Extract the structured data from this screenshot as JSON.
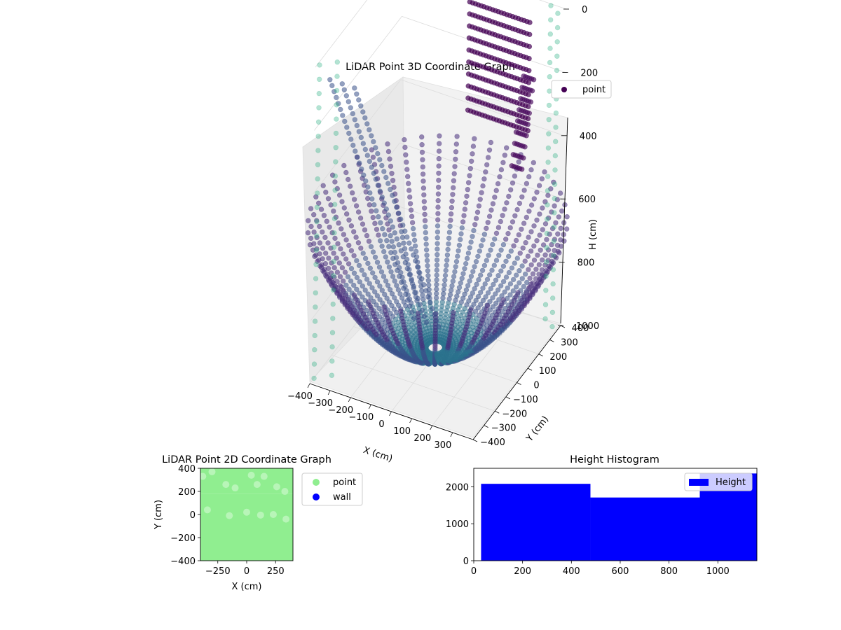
{
  "chart_data": [
    {
      "type": "scatter",
      "projection": "3d",
      "title": "LiDAR Point 3D Coordinate Graph",
      "xlabel": "X (cm)",
      "ylabel": "Y (cm)",
      "zlabel": "H (cm)",
      "xlim": [
        -400,
        400
      ],
      "ylim": [
        -400,
        400
      ],
      "zlim": [
        0,
        1000
      ],
      "z_inverted": true,
      "x_ticks": [
        "−400",
        "−300",
        "−200",
        "−100",
        "0",
        "100",
        "200",
        "300"
      ],
      "y_ticks": [
        "−400",
        "−300",
        "−200",
        "−100",
        "0",
        "100",
        "200",
        "300",
        "400"
      ],
      "z_ticks": [
        "0",
        "200",
        "400",
        "600",
        "800",
        "1000"
      ],
      "legend": [
        {
          "label": "point",
          "color": "#440154"
        }
      ],
      "legend_placement": "top-right",
      "grid": true,
      "colormap": "viridis",
      "series": [
        {
          "name": "point",
          "shape": "bowl",
          "description_values": {
            "z_floor": 950,
            "z_rim": 600,
            "radius_max": 400
          }
        }
      ]
    },
    {
      "type": "scatter",
      "title": "LiDAR Point 2D Coordinate Graph",
      "xlabel": "X (cm)",
      "ylabel": "Y (cm)",
      "xlim": [
        -400,
        400
      ],
      "ylim": [
        -400,
        400
      ],
      "x_ticks": [
        "−250",
        "0",
        "250"
      ],
      "y_ticks": [
        "−400",
        "−200",
        "0",
        "200",
        "400"
      ],
      "legend": [
        {
          "label": "point",
          "color": "#90ee90"
        },
        {
          "label": "wall",
          "color": "#0000ff"
        }
      ],
      "legend_placement": "outside-right"
    },
    {
      "type": "bar",
      "title": "Height Histogram",
      "xlim": [
        0,
        1160
      ],
      "ylim": [
        0,
        2500
      ],
      "x_ticks": [
        "0",
        "200",
        "400",
        "600",
        "800",
        "1000"
      ],
      "y_ticks": [
        "0",
        "1000",
        "2000"
      ],
      "bins": [
        {
          "start": 30,
          "end": 478,
          "count": 2080
        },
        {
          "start": 478,
          "end": 926,
          "count": 1710
        },
        {
          "start": 926,
          "end": 1160,
          "count": 2360
        }
      ],
      "series": [
        {
          "name": "Height",
          "color": "#0000ff"
        }
      ],
      "legend_placement": "top-right"
    }
  ]
}
